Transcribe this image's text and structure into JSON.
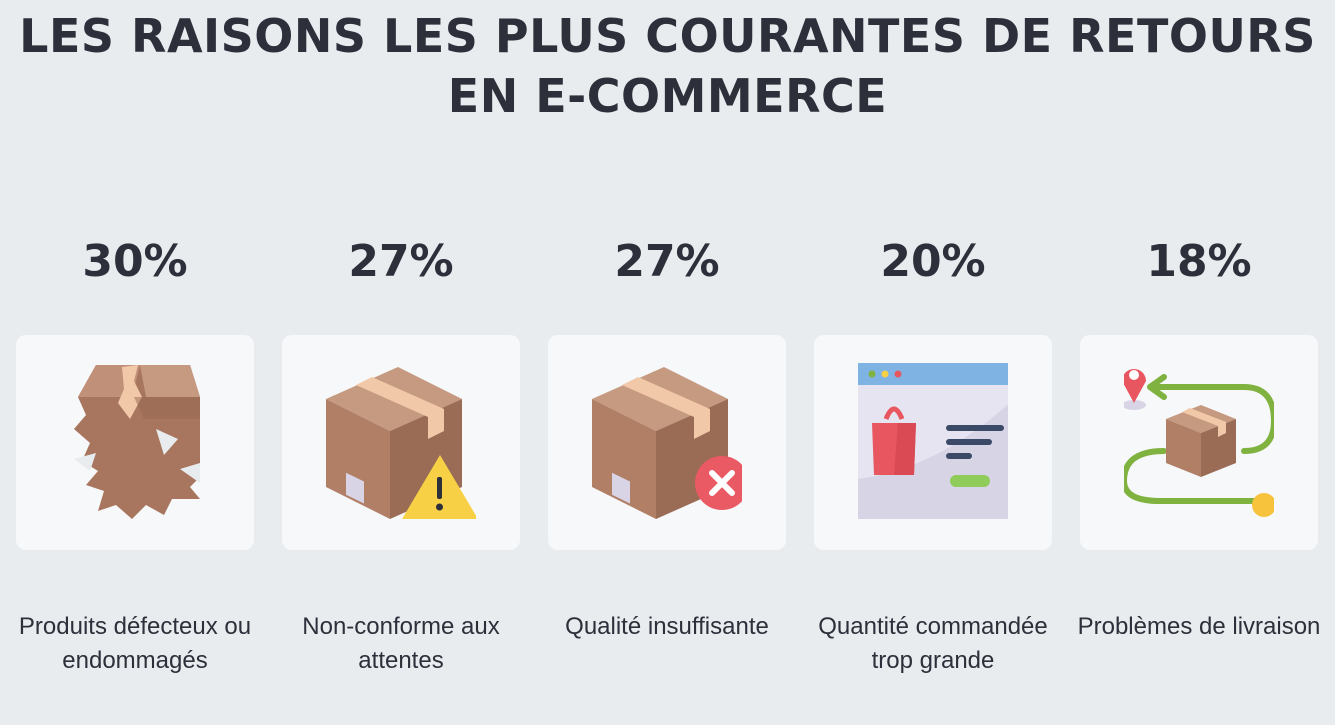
{
  "title": {
    "line1": "LES RAISONS LES PLUS COURANTES DE RETOURS",
    "line2": "EN E-COMMERCE"
  },
  "items": [
    {
      "percent": "30%",
      "label": "Produits défecteux ou endommagés",
      "icon": "damaged-box-icon"
    },
    {
      "percent": "27%",
      "label": "Non-conforme aux attentes",
      "icon": "box-warning-icon"
    },
    {
      "percent": "27%",
      "label": "Qualité insuffisante",
      "icon": "box-reject-icon"
    },
    {
      "percent": "20%",
      "label": "Quantité commandée trop grande",
      "icon": "shopping-window-icon"
    },
    {
      "percent": "18%",
      "label": "Problèmes de livraison",
      "icon": "delivery-route-icon"
    }
  ],
  "colors": {
    "background": "#e9ecef",
    "card": "#f7f8fa",
    "text": "#2d2f3a",
    "box": "#b07f66",
    "tape": "#f1c9a8",
    "warning": "#f7d046",
    "reject": "#e95a64",
    "route": "#7fb23f",
    "pin": "#e8565f"
  }
}
